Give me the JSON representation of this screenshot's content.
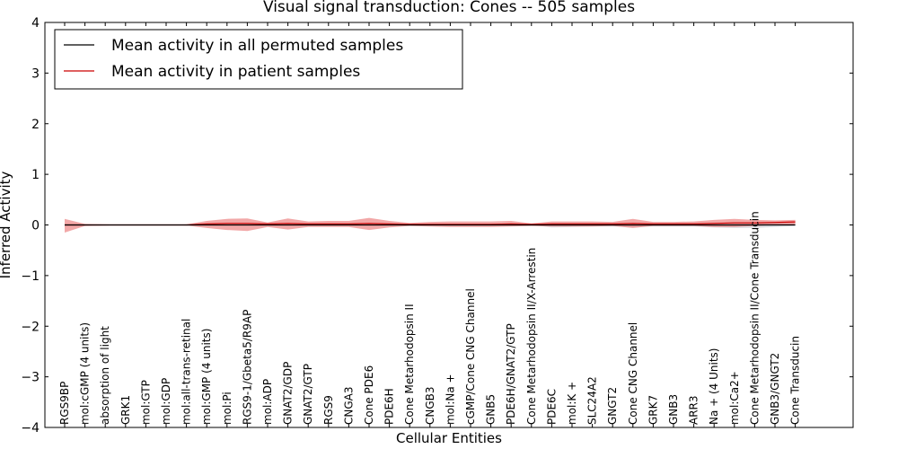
{
  "chart_data": {
    "type": "line",
    "title": "Visual signal transduction: Cones -- 505 samples",
    "xlabel": "Cellular Entities",
    "ylabel": "Inferred Activity",
    "ylim": [
      -4,
      4
    ],
    "yticks": [
      -4,
      -3,
      -2,
      -1,
      0,
      1,
      2,
      3,
      4
    ],
    "ytick_labels": [
      "−4",
      "−3",
      "−2",
      "−1",
      "0",
      "1",
      "2",
      "3",
      "4"
    ],
    "grid": false,
    "legend_position": "top-left",
    "categories": [
      "RGS9BP",
      "mol:cGMP (4 units)",
      "absorption of light",
      "GRK1",
      "mol:GTP",
      "mol:GDP",
      "mol:all-trans-retinal",
      "mol:GMP (4 units)",
      "mol:Pi",
      "RGS9-1/Gbeta5/R9AP",
      "mol:ADP",
      "GNAT2/GDP",
      "GNAT2/GTP",
      "RGS9",
      "CNGA3",
      "Cone PDE6",
      "PDE6H",
      "Cone Metarhodopsin II",
      "CNGB3",
      "mol:Na +",
      "cGMP/Cone CNG Channel",
      "GNB5",
      "PDE6H/GNAT2/GTP",
      "Cone Metarhodopsin II/X-Arrestin",
      "PDE6C",
      "mol:K +",
      "SLC24A2",
      "GNGT2",
      "Cone CNG Channel",
      "GRK7",
      "GNB3",
      "ARR3",
      "Na + (4 Units)",
      "mol:Ca2+",
      "Cone Metarhodopsin II/Cone Transducin",
      "GNB3/GNGT2",
      "Cone Transducin"
    ],
    "series": [
      {
        "name": "Mean activity in all permuted samples",
        "color": "#000000",
        "values": [
          0.0,
          0.0,
          0.0,
          0.0,
          0.0,
          0.0,
          0.0,
          0.0,
          0.0,
          0.0,
          0.0,
          0.0,
          0.0,
          0.0,
          0.0,
          0.0,
          0.0,
          0.0,
          0.0,
          0.0,
          0.0,
          0.0,
          0.0,
          0.0,
          0.0,
          0.0,
          0.0,
          0.0,
          0.0,
          0.0,
          0.0,
          0.0,
          0.0,
          0.0,
          0.0,
          0.0,
          0.0
        ],
        "band_lower": [
          0.0,
          0.0,
          0.0,
          0.0,
          0.0,
          0.0,
          0.0,
          0.0,
          0.0,
          0.0,
          0.0,
          0.0,
          0.0,
          0.0,
          0.0,
          0.0,
          0.0,
          0.0,
          0.0,
          0.0,
          0.0,
          0.0,
          0.0,
          0.0,
          -0.05,
          -0.04,
          -0.03,
          -0.03,
          -0.04,
          -0.03,
          -0.03,
          -0.03,
          -0.05,
          -0.06,
          -0.06,
          -0.04,
          -0.02
        ],
        "band_upper": [
          0.0,
          0.0,
          0.0,
          0.0,
          0.0,
          0.0,
          0.0,
          0.0,
          0.0,
          0.0,
          0.0,
          0.0,
          0.0,
          0.0,
          0.0,
          0.0,
          0.0,
          0.0,
          0.0,
          0.0,
          0.0,
          0.0,
          0.0,
          0.0,
          0.03,
          0.03,
          0.03,
          0.03,
          0.04,
          0.03,
          0.03,
          0.03,
          0.04,
          0.05,
          0.05,
          0.04,
          0.03
        ],
        "band_color": "#c8c8d0"
      },
      {
        "name": "Mean activity in patient samples",
        "color": "#cc0000",
        "values": [
          0.0,
          0.0,
          0.0,
          0.0,
          0.0,
          0.0,
          0.0,
          0.02,
          0.03,
          0.03,
          0.02,
          0.03,
          0.02,
          0.02,
          0.02,
          0.03,
          0.02,
          0.01,
          0.01,
          0.01,
          0.01,
          0.01,
          0.02,
          0.01,
          0.02,
          0.02,
          0.02,
          0.02,
          0.03,
          0.02,
          0.02,
          0.02,
          0.03,
          0.04,
          0.04,
          0.05,
          0.06
        ],
        "band_lower": [
          -0.15,
          -0.02,
          -0.01,
          0.0,
          0.0,
          0.0,
          -0.01,
          -0.06,
          -0.1,
          -0.12,
          -0.04,
          -0.09,
          -0.04,
          -0.04,
          -0.04,
          -0.1,
          -0.05,
          -0.02,
          -0.03,
          -0.04,
          -0.04,
          -0.04,
          -0.03,
          -0.02,
          -0.03,
          -0.03,
          -0.03,
          -0.02,
          -0.06,
          -0.02,
          -0.02,
          -0.02,
          -0.04,
          -0.04,
          -0.02,
          0.0,
          0.01
        ],
        "band_upper": [
          0.12,
          0.02,
          0.01,
          0.0,
          0.0,
          0.0,
          0.01,
          0.08,
          0.12,
          0.13,
          0.05,
          0.13,
          0.07,
          0.08,
          0.08,
          0.14,
          0.08,
          0.04,
          0.06,
          0.07,
          0.07,
          0.07,
          0.08,
          0.03,
          0.07,
          0.07,
          0.07,
          0.06,
          0.12,
          0.06,
          0.06,
          0.07,
          0.1,
          0.12,
          0.1,
          0.09,
          0.1
        ],
        "band_color": "#e86060"
      }
    ]
  }
}
